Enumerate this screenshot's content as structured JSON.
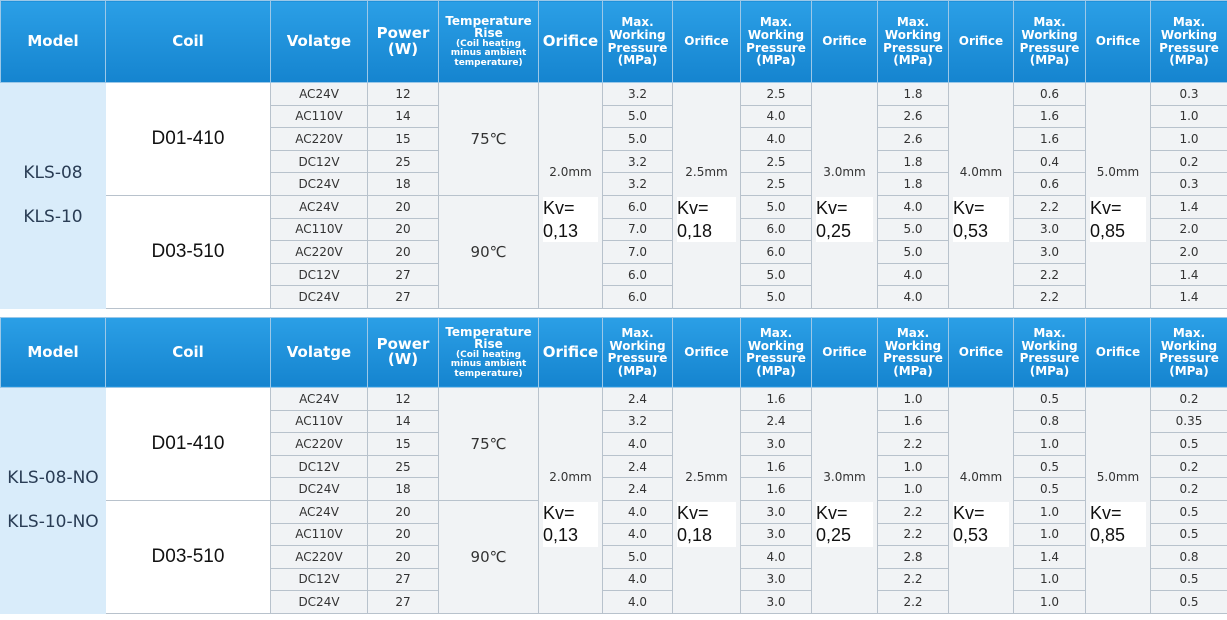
{
  "tables": [
    {
      "header": [
        [
          "Model"
        ],
        [
          "Coil"
        ],
        [
          "Volatge"
        ],
        [
          "Power",
          "(W)"
        ],
        [
          "Temperature Rise",
          "(Coil heating minus ambient temperature)"
        ],
        [
          "Orifice"
        ],
        [
          "Max. Working Pressure (MPa)"
        ],
        [
          "Orifice"
        ],
        [
          "Max. Working Pressure (MPa)"
        ],
        [
          "Orifice"
        ],
        [
          "Max. Working Pressure (MPa)"
        ],
        [
          "Orifice"
        ],
        [
          "Max. Working Pressure (MPa)"
        ],
        [
          "Orifice"
        ],
        [
          "Max. Working Pressure (MPa)"
        ]
      ],
      "models": [
        "KLS-08",
        "KLS-10"
      ],
      "coils": [
        {
          "name": "D01-410",
          "temp": "75℃",
          "rows": [
            [
              "AC24V",
              "12"
            ],
            [
              "AC110V",
              "14"
            ],
            [
              "AC220V",
              "15"
            ],
            [
              "DC12V",
              "25"
            ],
            [
              "DC24V",
              "18"
            ]
          ]
        },
        {
          "name": "D03-510",
          "temp": "90℃",
          "rows": [
            [
              "AC24V",
              "20"
            ],
            [
              "AC110V",
              "20"
            ],
            [
              "AC220V",
              "20"
            ],
            [
              "DC12V",
              "27"
            ],
            [
              "DC24V",
              "27"
            ]
          ]
        }
      ],
      "orifices": [
        {
          "size": "2.0mm",
          "kv": [
            "Kv=",
            "0,13"
          ],
          "pressures": [
            "3.2",
            "5.0",
            "5.0",
            "3.2",
            "3.2",
            "6.0",
            "7.0",
            "7.0",
            "6.0",
            "6.0"
          ]
        },
        {
          "size": "2.5mm",
          "kv": [
            "Kv=",
            "0,18"
          ],
          "pressures": [
            "2.5",
            "4.0",
            "4.0",
            "2.5",
            "2.5",
            "5.0",
            "6.0",
            "6.0",
            "5.0",
            "5.0"
          ]
        },
        {
          "size": "3.0mm",
          "kv": [
            "Kv=",
            "0,25"
          ],
          "pressures": [
            "1.8",
            "2.6",
            "2.6",
            "1.8",
            "1.8",
            "4.0",
            "5.0",
            "5.0",
            "4.0",
            "4.0"
          ]
        },
        {
          "size": "4.0mm",
          "kv": [
            "Kv=",
            "0,53"
          ],
          "pressures": [
            "0.6",
            "1.6",
            "1.6",
            "0.4",
            "0.6",
            "2.2",
            "3.0",
            "3.0",
            "2.2",
            "2.2"
          ]
        },
        {
          "size": "5.0mm",
          "kv": [
            "Kv=",
            "0,85"
          ],
          "pressures": [
            "0.3",
            "1.0",
            "1.0",
            "0.2",
            "0.3",
            "1.4",
            "2.0",
            "2.0",
            "1.4",
            "1.4"
          ]
        }
      ]
    },
    {
      "header": [
        [
          "Model"
        ],
        [
          "Coil"
        ],
        [
          "Volatge"
        ],
        [
          "Power",
          "(W)"
        ],
        [
          "Temperature Rise",
          "(Coil heating minus ambient temperature)"
        ],
        [
          "Orifice"
        ],
        [
          "Max. Working Pressure (MPa)"
        ],
        [
          "Orifice"
        ],
        [
          "Max. Working Pressure (MPa)"
        ],
        [
          "Orifice"
        ],
        [
          "Max. Working Pressure (MPa)"
        ],
        [
          "Orifice"
        ],
        [
          "Max. Working Pressure (MPa)"
        ],
        [
          "Orifice"
        ],
        [
          "Max. Working Pressure (MPa)"
        ]
      ],
      "models": [
        "KLS-08-NO",
        "KLS-10-NO"
      ],
      "coils": [
        {
          "name": "D01-410",
          "temp": "75℃",
          "rows": [
            [
              "AC24V",
              "12"
            ],
            [
              "AC110V",
              "14"
            ],
            [
              "AC220V",
              "15"
            ],
            [
              "DC12V",
              "25"
            ],
            [
              "DC24V",
              "18"
            ]
          ]
        },
        {
          "name": "D03-510",
          "temp": "90℃",
          "rows": [
            [
              "AC24V",
              "20"
            ],
            [
              "AC110V",
              "20"
            ],
            [
              "AC220V",
              "20"
            ],
            [
              "DC12V",
              "27"
            ],
            [
              "DC24V",
              "27"
            ]
          ]
        }
      ],
      "orifices": [
        {
          "size": "2.0mm",
          "kv": [
            "Kv=",
            "0,13"
          ],
          "pressures": [
            "2.4",
            "3.2",
            "4.0",
            "2.4",
            "2.4",
            "4.0",
            "4.0",
            "5.0",
            "4.0",
            "4.0"
          ]
        },
        {
          "size": "2.5mm",
          "kv": [
            "Kv=",
            "0,18"
          ],
          "pressures": [
            "1.6",
            "2.4",
            "3.0",
            "1.6",
            "1.6",
            "3.0",
            "3.0",
            "4.0",
            "3.0",
            "3.0"
          ]
        },
        {
          "size": "3.0mm",
          "kv": [
            "Kv=",
            "0,25"
          ],
          "pressures": [
            "1.0",
            "1.6",
            "2.2",
            "1.0",
            "1.0",
            "2.2",
            "2.2",
            "2.8",
            "2.2",
            "2.2"
          ]
        },
        {
          "size": "4.0mm",
          "kv": [
            "Kv=",
            "0,53"
          ],
          "pressures": [
            "0.5",
            "0.8",
            "1.0",
            "0.5",
            "0.5",
            "1.0",
            "1.0",
            "1.4",
            "1.0",
            "1.0"
          ]
        },
        {
          "size": "5.0mm",
          "kv": [
            "Kv=",
            "0,85"
          ],
          "pressures": [
            "0.2",
            "0.35",
            "0.5",
            "0.2",
            "0.2",
            "0.5",
            "0.5",
            "0.8",
            "0.5",
            "0.5"
          ]
        }
      ]
    }
  ]
}
